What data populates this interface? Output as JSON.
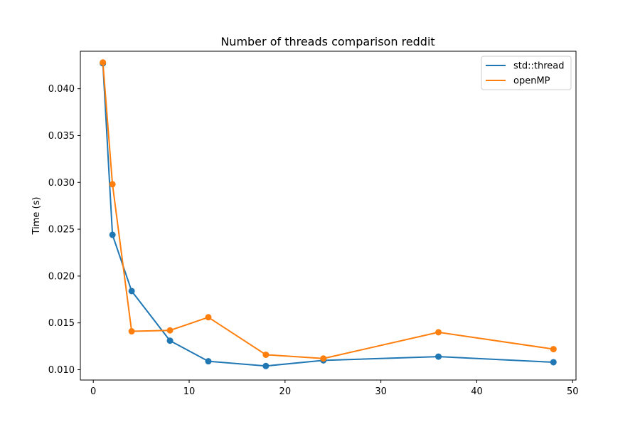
{
  "chart_data": {
    "type": "line",
    "title": "Number of threads comparison reddit",
    "xlabel": "",
    "ylabel": "Time (s)",
    "xlim": [
      -1.35,
      50.35
    ],
    "ylim": [
      0.0089,
      0.044
    ],
    "xticks": [
      0,
      10,
      20,
      30,
      40,
      50
    ],
    "yticks": [
      0.01,
      0.015,
      0.02,
      0.025,
      0.03,
      0.035,
      0.04
    ],
    "ytick_labels": [
      "0.010",
      "0.015",
      "0.020",
      "0.025",
      "0.030",
      "0.035",
      "0.040"
    ],
    "grid": false,
    "legend_position": "top-right",
    "x": [
      1,
      2,
      4,
      8,
      12,
      18,
      24,
      36,
      48
    ],
    "series": [
      {
        "name": "std::thread",
        "color": "#1f77b4",
        "values": [
          0.0427,
          0.0244,
          0.0184,
          0.0131,
          0.0109,
          0.0104,
          0.011,
          0.0114,
          0.0108
        ]
      },
      {
        "name": "openMP",
        "color": "#ff7f0e",
        "values": [
          0.0428,
          0.0298,
          0.0141,
          0.0142,
          0.0156,
          0.0116,
          0.0112,
          0.014,
          0.0122
        ]
      }
    ]
  }
}
